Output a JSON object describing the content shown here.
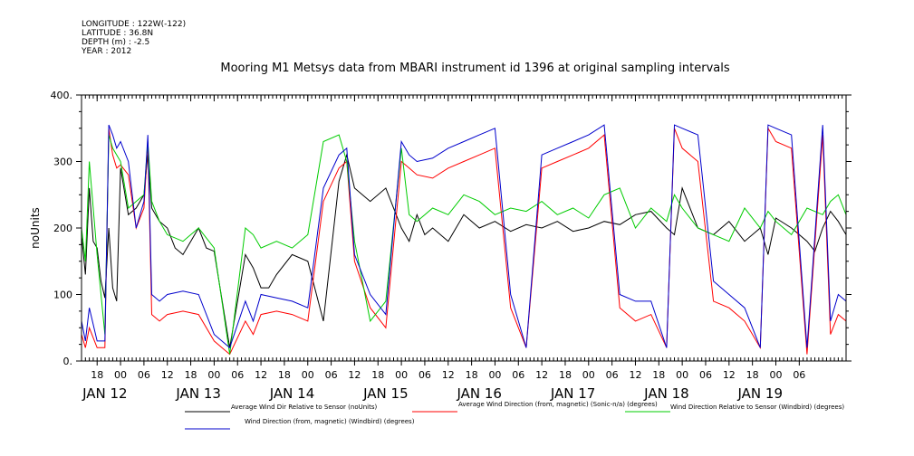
{
  "header": {
    "longitude": "LONGITUDE : 122W(-122)",
    "latitude": "LATITUDE : 36.8N",
    "depth": "DEPTH (m) : -2.5",
    "year": "YEAR : 2012"
  },
  "chart_data": {
    "type": "line",
    "title": "Mooring M1 Metsys data from MBARI instrument id 1396 at original sampling intervals",
    "ylabel": "noUnits",
    "ylim": [
      0,
      400
    ],
    "yticks": [
      "0.",
      "100",
      "200",
      "300",
      "400."
    ],
    "ytick_values": [
      0,
      100,
      200,
      300,
      400
    ],
    "xlim_hours": [
      -10,
      186
    ],
    "hour_tick_labels": [
      "18",
      "00",
      "06",
      "12",
      "18",
      "00",
      "06",
      "12",
      "18",
      "00",
      "06",
      "12",
      "18",
      "00",
      "06",
      "12",
      "18",
      "00",
      "06",
      "12",
      "18",
      "00",
      "06",
      "12",
      "18",
      "00",
      "06",
      "12",
      "18",
      "00",
      "06"
    ],
    "date_labels": [
      "JAN 12",
      "JAN 13",
      "JAN 14",
      "JAN 15",
      "JAN 16",
      "JAN 17",
      "JAN 18",
      "JAN 19"
    ],
    "series": [
      {
        "name": "Average Wind Dir Relative to Sensor (noUnits)",
        "color": "#000000",
        "x": [
          -10,
          -9,
          -8,
          -7,
          -6,
          -5,
          -4,
          -3,
          -2,
          -1,
          0,
          2,
          4,
          6,
          7,
          8,
          10,
          12,
          14,
          16,
          18,
          20,
          22,
          24,
          28,
          32,
          34,
          36,
          38,
          40,
          44,
          48,
          52,
          56,
          58,
          60,
          64,
          68,
          72,
          74,
          76,
          78,
          80,
          84,
          88,
          92,
          96,
          100,
          104,
          108,
          112,
          116,
          120,
          124,
          128,
          132,
          136,
          140,
          142,
          144,
          148,
          152,
          156,
          160,
          164,
          166,
          168,
          172,
          176,
          178,
          180,
          182,
          184,
          186
        ],
        "y": [
          190,
          130,
          260,
          180,
          170,
          120,
          95,
          200,
          110,
          90,
          290,
          220,
          230,
          250,
          310,
          230,
          210,
          200,
          170,
          160,
          180,
          200,
          170,
          165,
          20,
          160,
          140,
          110,
          110,
          130,
          160,
          150,
          60,
          270,
          310,
          260,
          240,
          260,
          200,
          180,
          220,
          190,
          200,
          180,
          220,
          200,
          210,
          195,
          205,
          200,
          210,
          195,
          200,
          210,
          205,
          220,
          225,
          200,
          190,
          260,
          200,
          190,
          210,
          180,
          200,
          160,
          215,
          200,
          180,
          165,
          200,
          225,
          210,
          190
        ]
      },
      {
        "name": "Average Wind Direction (from, magnetic) (Sonic-n/a) (degrees)",
        "color": "#ff0000",
        "x": [
          -10,
          -9,
          -8,
          -6,
          -4,
          -3,
          -2,
          -1,
          0,
          2,
          4,
          6,
          7,
          8,
          10,
          12,
          16,
          20,
          24,
          28,
          32,
          34,
          36,
          40,
          44,
          48,
          52,
          56,
          58,
          60,
          64,
          68,
          72,
          74,
          76,
          80,
          84,
          88,
          92,
          96,
          100,
          104,
          108,
          112,
          116,
          120,
          124,
          128,
          132,
          136,
          140,
          142,
          144,
          148,
          152,
          156,
          160,
          164,
          166,
          168,
          172,
          176,
          180,
          182,
          184,
          186
        ],
        "y": [
          40,
          20,
          50,
          20,
          20,
          350,
          310,
          290,
          295,
          280,
          200,
          230,
          330,
          70,
          60,
          70,
          75,
          70,
          30,
          10,
          60,
          40,
          70,
          75,
          70,
          60,
          240,
          290,
          300,
          150,
          80,
          50,
          300,
          290,
          280,
          275,
          290,
          300,
          310,
          320,
          80,
          20,
          290,
          300,
          310,
          320,
          340,
          80,
          60,
          70,
          20,
          350,
          320,
          300,
          90,
          80,
          60,
          20,
          350,
          330,
          320,
          10,
          340,
          40,
          70,
          60
        ]
      },
      {
        "name": "Wind Direction Relative to Sensor (Windbird) (degrees)",
        "color": "#00cc00",
        "x": [
          -10,
          -9,
          -8,
          -6,
          -4,
          -3,
          -2,
          -1,
          0,
          2,
          4,
          6,
          7,
          8,
          10,
          12,
          16,
          20,
          24,
          28,
          32,
          34,
          36,
          40,
          44,
          48,
          52,
          56,
          58,
          60,
          64,
          68,
          72,
          74,
          76,
          80,
          84,
          88,
          92,
          96,
          100,
          104,
          108,
          112,
          116,
          120,
          124,
          128,
          132,
          136,
          140,
          142,
          144,
          148,
          152,
          156,
          160,
          164,
          166,
          168,
          172,
          176,
          180,
          182,
          184,
          186
        ],
        "y": [
          200,
          150,
          300,
          160,
          40,
          340,
          320,
          310,
          300,
          230,
          240,
          250,
          330,
          240,
          210,
          190,
          180,
          200,
          170,
          10,
          200,
          190,
          170,
          180,
          170,
          190,
          330,
          340,
          300,
          180,
          60,
          90,
          320,
          220,
          210,
          230,
          220,
          250,
          240,
          220,
          230,
          225,
          240,
          220,
          230,
          215,
          250,
          260,
          200,
          230,
          210,
          250,
          230,
          200,
          190,
          180,
          230,
          200,
          225,
          210,
          190,
          230,
          220,
          240,
          250,
          220
        ]
      },
      {
        "name": "Wind Direction (from, magnetic) (Windbird) (degrees)",
        "color": "#0000cc",
        "x": [
          -10,
          -9,
          -8,
          -6,
          -4,
          -3,
          -2,
          -1,
          0,
          2,
          4,
          6,
          7,
          8,
          10,
          12,
          16,
          20,
          24,
          28,
          32,
          34,
          36,
          40,
          44,
          48,
          52,
          56,
          58,
          60,
          64,
          68,
          72,
          74,
          76,
          80,
          84,
          88,
          92,
          96,
          100,
          104,
          108,
          112,
          116,
          120,
          124,
          128,
          132,
          136,
          140,
          142,
          144,
          148,
          152,
          156,
          160,
          164,
          166,
          168,
          172,
          176,
          180,
          182,
          184,
          186
        ],
        "y": [
          60,
          30,
          80,
          30,
          30,
          355,
          340,
          320,
          330,
          300,
          200,
          240,
          340,
          100,
          90,
          100,
          105,
          100,
          40,
          20,
          90,
          60,
          100,
          95,
          90,
          80,
          260,
          310,
          320,
          160,
          100,
          70,
          330,
          310,
          300,
          305,
          320,
          330,
          340,
          350,
          100,
          20,
          310,
          320,
          330,
          340,
          355,
          100,
          90,
          90,
          20,
          355,
          350,
          340,
          120,
          100,
          80,
          20,
          355,
          350,
          340,
          20,
          355,
          60,
          100,
          90
        ]
      }
    ]
  }
}
